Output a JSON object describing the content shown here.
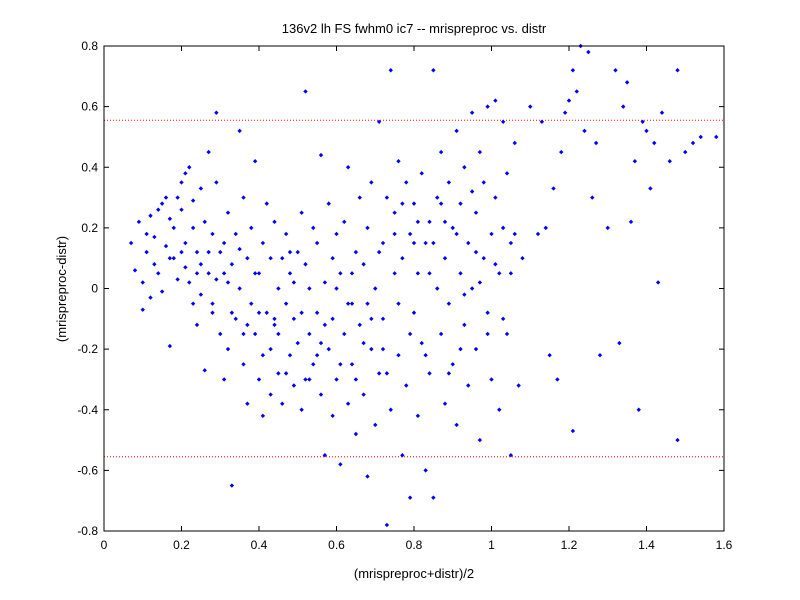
{
  "chart_data": {
    "type": "scatter",
    "title": "136v2 lh FS fwhm0 ic7 -- mrispreproc vs. distr",
    "xlabel": "(mrispreproc+distr)/2",
    "ylabel": "(mrispreproc-distr)",
    "xlim": [
      0,
      1.6
    ],
    "ylim": [
      -0.8,
      0.8
    ],
    "xticks": [
      0,
      0.2,
      0.4,
      0.6,
      0.8,
      1,
      1.2,
      1.4,
      1.6
    ],
    "xtick_labels": [
      "0",
      "0.2",
      "0.4",
      "0.6",
      "0.8",
      "1",
      "1.2",
      "1.4",
      "1.6"
    ],
    "yticks": [
      -0.8,
      -0.6,
      -0.4,
      -0.2,
      0,
      0.2,
      0.4,
      0.6,
      0.8
    ],
    "ytick_labels": [
      "-0.8",
      "-0.6",
      "-0.4",
      "-0.2",
      "0",
      "0.2",
      "0.4",
      "0.6",
      "0.8"
    ],
    "grid": false,
    "legend": "none",
    "marker": "diamond",
    "point_color": "#0000ff",
    "reference_lines": {
      "y_values": [
        0.555,
        -0.555
      ],
      "style": "dotted",
      "color": "#ff0000"
    },
    "series": [
      {
        "points": [
          [
            0.07,
            0.15
          ],
          [
            0.08,
            0.06
          ],
          [
            0.09,
            0.22
          ],
          [
            0.1,
            0.02
          ],
          [
            0.1,
            -0.07
          ],
          [
            0.11,
            0.18
          ],
          [
            0.11,
            0.12
          ],
          [
            0.12,
            0.24
          ],
          [
            0.12,
            -0.03
          ],
          [
            0.13,
            0.17
          ],
          [
            0.13,
            0.08
          ],
          [
            0.14,
            0.26
          ],
          [
            0.14,
            0.05
          ],
          [
            0.15,
            0.28
          ],
          [
            0.15,
            -0.01
          ],
          [
            0.16,
            0.3
          ],
          [
            0.16,
            0.14
          ],
          [
            0.17,
            0.23
          ],
          [
            0.17,
            -0.19
          ],
          [
            0.18,
            0.1
          ],
          [
            0.18,
            0.2
          ],
          [
            0.19,
            0.03
          ],
          [
            0.2,
            0.35
          ],
          [
            0.2,
            0.26
          ],
          [
            0.21,
            0.38
          ],
          [
            0.21,
            0.15
          ],
          [
            0.22,
            0.02
          ],
          [
            0.22,
            0.4
          ],
          [
            0.23,
            -0.05
          ],
          [
            0.23,
            0.29
          ],
          [
            0.24,
            0.12
          ],
          [
            0.24,
            -0.12
          ],
          [
            0.25,
            0.33
          ],
          [
            0.25,
            0.08
          ],
          [
            0.26,
            -0.27
          ],
          [
            0.26,
            0.22
          ],
          [
            0.27,
            0.05
          ],
          [
            0.27,
            0.45
          ],
          [
            0.28,
            -0.08
          ],
          [
            0.28,
            0.18
          ],
          [
            0.29,
            0.58
          ],
          [
            0.29,
            0.35
          ],
          [
            0.3,
            -0.15
          ],
          [
            0.3,
            0.12
          ],
          [
            0.31,
            0.05
          ],
          [
            0.31,
            -0.3
          ],
          [
            0.32,
            0.25
          ],
          [
            0.32,
            -0.2
          ],
          [
            0.33,
            0.08
          ],
          [
            0.33,
            -0.65
          ],
          [
            0.34,
            0.18
          ],
          [
            0.34,
            -0.1
          ],
          [
            0.35,
            0.52
          ],
          [
            0.35,
            0.0
          ],
          [
            0.36,
            -0.25
          ],
          [
            0.36,
            0.3
          ],
          [
            0.37,
            -0.38
          ],
          [
            0.37,
            0.1
          ],
          [
            0.38,
            -0.05
          ],
          [
            0.38,
            0.2
          ],
          [
            0.39,
            -0.15
          ],
          [
            0.39,
            0.42
          ],
          [
            0.4,
            -0.3
          ],
          [
            0.4,
            0.05
          ],
          [
            0.41,
            -0.42
          ],
          [
            0.41,
            0.15
          ],
          [
            0.42,
            -0.08
          ],
          [
            0.42,
            0.28
          ],
          [
            0.43,
            -0.2
          ],
          [
            0.43,
            -0.35
          ],
          [
            0.44,
            0.22
          ],
          [
            0.44,
            -0.12
          ],
          [
            0.45,
            0.0
          ],
          [
            0.45,
            -0.28
          ],
          [
            0.46,
            0.1
          ],
          [
            0.46,
            -0.38
          ],
          [
            0.47,
            -0.05
          ],
          [
            0.47,
            0.18
          ],
          [
            0.48,
            -0.22
          ],
          [
            0.48,
            0.05
          ],
          [
            0.49,
            -0.32
          ],
          [
            0.49,
            -0.1
          ],
          [
            0.5,
            0.12
          ],
          [
            0.5,
            -0.18
          ],
          [
            0.51,
            -0.4
          ],
          [
            0.51,
            0.25
          ],
          [
            0.52,
            0.65
          ],
          [
            0.52,
            -0.3
          ],
          [
            0.53,
            0.0
          ],
          [
            0.53,
            -0.15
          ],
          [
            0.54,
            0.2
          ],
          [
            0.54,
            -0.25
          ],
          [
            0.55,
            -0.08
          ],
          [
            0.55,
            0.15
          ],
          [
            0.56,
            -0.35
          ],
          [
            0.56,
            0.44
          ],
          [
            0.57,
            -0.55
          ],
          [
            0.57,
            0.02
          ],
          [
            0.58,
            -0.2
          ],
          [
            0.58,
            0.28
          ],
          [
            0.59,
            -0.42
          ],
          [
            0.59,
            -0.1
          ],
          [
            0.6,
            0.18
          ],
          [
            0.6,
            -0.3
          ],
          [
            0.61,
            0.05
          ],
          [
            0.61,
            -0.58
          ],
          [
            0.62,
            -0.15
          ],
          [
            0.62,
            0.22
          ],
          [
            0.63,
            -0.38
          ],
          [
            0.63,
            0.4
          ],
          [
            0.64,
            -0.05
          ],
          [
            0.64,
            -0.25
          ],
          [
            0.65,
            0.12
          ],
          [
            0.65,
            -0.48
          ],
          [
            0.66,
            0.3
          ],
          [
            0.66,
            -0.12
          ],
          [
            0.67,
            -0.35
          ],
          [
            0.67,
            0.08
          ],
          [
            0.68,
            -0.62
          ],
          [
            0.68,
            0.2
          ],
          [
            0.69,
            -0.2
          ],
          [
            0.69,
            0.35
          ],
          [
            0.7,
            -0.45
          ],
          [
            0.7,
            0.0
          ],
          [
            0.71,
            0.55
          ],
          [
            0.71,
            -0.28
          ],
          [
            0.72,
            0.15
          ],
          [
            0.72,
            -0.1
          ],
          [
            0.73,
            -0.78
          ],
          [
            0.73,
            0.3
          ],
          [
            0.74,
            0.72
          ],
          [
            0.74,
            -0.4
          ],
          [
            0.75,
            0.05
          ],
          [
            0.75,
            0.25
          ],
          [
            0.76,
            -0.22
          ],
          [
            0.76,
            0.42
          ],
          [
            0.77,
            -0.55
          ],
          [
            0.77,
            0.1
          ],
          [
            0.78,
            0.35
          ],
          [
            0.78,
            -0.32
          ],
          [
            0.79,
            -0.69
          ],
          [
            0.79,
            0.18
          ],
          [
            0.8,
            -0.08
          ],
          [
            0.8,
            0.28
          ],
          [
            0.81,
            -0.42
          ],
          [
            0.81,
            0.05
          ],
          [
            0.82,
            0.38
          ],
          [
            0.82,
            -0.18
          ],
          [
            0.83,
            0.15
          ],
          [
            0.83,
            -0.6
          ],
          [
            0.84,
            0.22
          ],
          [
            0.84,
            -0.28
          ],
          [
            0.85,
            0.72
          ],
          [
            0.85,
            -0.69
          ],
          [
            0.86,
            0.0
          ],
          [
            0.86,
            0.3
          ],
          [
            0.87,
            -0.15
          ],
          [
            0.87,
            0.45
          ],
          [
            0.88,
            -0.38
          ],
          [
            0.88,
            0.1
          ],
          [
            0.89,
            0.35
          ],
          [
            0.89,
            -0.05
          ],
          [
            0.9,
            0.2
          ],
          [
            0.9,
            -0.25
          ],
          [
            0.91,
            0.52
          ],
          [
            0.91,
            -0.45
          ],
          [
            0.92,
            0.05
          ],
          [
            0.92,
            0.28
          ],
          [
            0.93,
            -0.12
          ],
          [
            0.93,
            0.4
          ],
          [
            0.94,
            0.15
          ],
          [
            0.94,
            -0.32
          ],
          [
            0.95,
            0.58
          ],
          [
            0.95,
            0.0
          ],
          [
            0.96,
            0.25
          ],
          [
            0.96,
            -0.2
          ],
          [
            0.97,
            0.45
          ],
          [
            0.97,
            -0.5
          ],
          [
            0.98,
            0.1
          ],
          [
            0.98,
            0.35
          ],
          [
            0.99,
            -0.08
          ],
          [
            0.99,
            0.6
          ],
          [
            1.0,
            0.18
          ],
          [
            1.0,
            -0.3
          ],
          [
            1.01,
            0.62
          ],
          [
            1.01,
            0.3
          ],
          [
            1.02,
            -0.4
          ],
          [
            1.02,
            0.05
          ],
          [
            1.03,
            0.55
          ],
          [
            1.03,
            0.2
          ],
          [
            1.04,
            -0.15
          ],
          [
            1.04,
            0.38
          ],
          [
            1.05,
            0.15
          ],
          [
            1.05,
            -0.55
          ],
          [
            1.06,
            0.48
          ],
          [
            1.06,
            0.18
          ],
          [
            1.07,
            -0.32
          ],
          [
            1.08,
            0.1
          ],
          [
            1.1,
            0.6
          ],
          [
            1.12,
            0.18
          ],
          [
            1.13,
            0.55
          ],
          [
            1.14,
            0.2
          ],
          [
            1.15,
            -0.22
          ],
          [
            1.16,
            0.33
          ],
          [
            1.17,
            -0.3
          ],
          [
            1.18,
            0.45
          ],
          [
            1.19,
            0.58
          ],
          [
            1.2,
            0.62
          ],
          [
            1.21,
            0.72
          ],
          [
            1.21,
            -0.47
          ],
          [
            1.22,
            0.65
          ],
          [
            1.23,
            0.8
          ],
          [
            1.24,
            0.52
          ],
          [
            1.25,
            0.78
          ],
          [
            1.26,
            0.3
          ],
          [
            1.27,
            0.48
          ],
          [
            1.28,
            -0.22
          ],
          [
            1.3,
            0.2
          ],
          [
            1.32,
            0.72
          ],
          [
            1.33,
            -0.18
          ],
          [
            1.34,
            0.6
          ],
          [
            1.35,
            0.68
          ],
          [
            1.36,
            0.22
          ],
          [
            1.37,
            0.42
          ],
          [
            1.38,
            -0.4
          ],
          [
            1.39,
            0.55
          ],
          [
            1.4,
            0.52
          ],
          [
            1.41,
            0.33
          ],
          [
            1.42,
            0.48
          ],
          [
            1.43,
            0.02
          ],
          [
            1.44,
            0.58
          ],
          [
            1.46,
            0.42
          ],
          [
            1.48,
            0.72
          ],
          [
            1.48,
            -0.5
          ],
          [
            1.5,
            0.45
          ],
          [
            1.52,
            0.48
          ],
          [
            1.54,
            0.5
          ],
          [
            1.58,
            0.5
          ],
          [
            0.17,
            0.1
          ],
          [
            0.19,
            0.3
          ],
          [
            0.21,
            0.07
          ],
          [
            0.23,
            0.2
          ],
          [
            0.25,
            -0.02
          ],
          [
            0.27,
            0.12
          ],
          [
            0.29,
            0.03
          ],
          [
            0.31,
            0.15
          ],
          [
            0.33,
            -0.08
          ],
          [
            0.35,
            0.13
          ],
          [
            0.37,
            -0.12
          ],
          [
            0.39,
            0.05
          ],
          [
            0.41,
            -0.22
          ],
          [
            0.43,
            0.1
          ],
          [
            0.45,
            -0.15
          ],
          [
            0.47,
            -0.28
          ],
          [
            0.49,
            0.02
          ],
          [
            0.51,
            -0.08
          ],
          [
            0.53,
            -0.3
          ],
          [
            0.55,
            -0.22
          ],
          [
            0.57,
            -0.12
          ],
          [
            0.59,
            0.1
          ],
          [
            0.61,
            -0.25
          ],
          [
            0.63,
            -0.05
          ],
          [
            0.65,
            -0.3
          ],
          [
            0.67,
            -0.18
          ],
          [
            0.69,
            -0.1
          ],
          [
            0.71,
            0.12
          ],
          [
            0.73,
            -0.28
          ],
          [
            0.75,
            0.18
          ],
          [
            0.77,
            0.28
          ],
          [
            0.79,
            -0.15
          ],
          [
            0.81,
            0.22
          ],
          [
            0.83,
            -0.22
          ],
          [
            0.85,
            0.15
          ],
          [
            0.87,
            0.28
          ],
          [
            0.89,
            -0.28
          ],
          [
            0.91,
            0.18
          ],
          [
            0.93,
            -0.02
          ],
          [
            0.95,
            0.32
          ],
          [
            0.97,
            0.02
          ],
          [
            0.99,
            -0.15
          ],
          [
            1.01,
            0.08
          ],
          [
            1.03,
            -0.1
          ],
          [
            1.05,
            0.05
          ],
          [
            0.2,
            0.12
          ],
          [
            0.24,
            0.05
          ],
          [
            0.28,
            -0.05
          ],
          [
            0.32,
            0.02
          ],
          [
            0.36,
            -0.15
          ],
          [
            0.4,
            -0.08
          ],
          [
            0.44,
            -0.1
          ],
          [
            0.48,
            0.12
          ],
          [
            0.52,
            0.08
          ],
          [
            0.56,
            -0.18
          ],
          [
            0.6,
            0.0
          ],
          [
            0.64,
            0.05
          ],
          [
            0.68,
            -0.05
          ],
          [
            0.72,
            -0.2
          ],
          [
            0.76,
            -0.05
          ],
          [
            0.8,
            0.15
          ],
          [
            0.84,
            0.05
          ],
          [
            0.88,
            0.22
          ],
          [
            0.92,
            -0.2
          ],
          [
            0.96,
            0.12
          ]
        ]
      }
    ]
  }
}
